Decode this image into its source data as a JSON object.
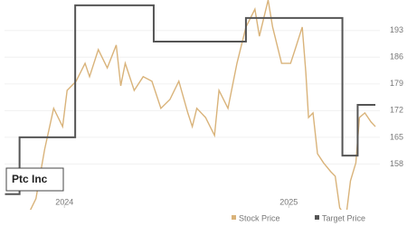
{
  "chart_data": {
    "type": "line",
    "annotation": "Ptc Inc",
    "xlim": [
      2023.733,
      2025.406
    ],
    "xticks": [
      2024,
      2025
    ],
    "ylim": [
      144,
      201
    ],
    "yticks": [
      158,
      165,
      172,
      179,
      186,
      193
    ],
    "grid": true,
    "series": [
      {
        "name": "Stock Price",
        "color": "#d9b37a",
        "step": false,
        "x": [
          2023.833,
          2023.873,
          2023.912,
          2023.952,
          2023.992,
          2024.012,
          2024.052,
          2024.092,
          2024.112,
          2024.151,
          2024.191,
          2024.231,
          2024.251,
          2024.271,
          2024.311,
          2024.351,
          2024.39,
          2024.43,
          2024.47,
          2024.51,
          2024.55,
          2024.57,
          2024.59,
          2024.629,
          2024.669,
          2024.689,
          2024.729,
          2024.769,
          2024.809,
          2024.849,
          2024.869,
          2024.908,
          2024.928,
          2024.968,
          2025.008,
          2025.028,
          2025.06,
          2025.076,
          2025.088,
          2025.108,
          2025.128,
          2025.155,
          2025.187,
          2025.207,
          2025.227,
          2025.255,
          2025.275,
          2025.299,
          2025.315,
          2025.339,
          2025.367,
          2025.386
        ],
        "values": [
          144.1,
          148.9,
          161.9,
          172.6,
          167.8,
          177.3,
          179.7,
          184.4,
          180.9,
          188.0,
          183.2,
          189.2,
          178.5,
          184.4,
          177.3,
          180.9,
          179.7,
          172.6,
          174.9,
          179.7,
          171.4,
          167.8,
          172.6,
          170.2,
          165.5,
          177.3,
          172.6,
          184.4,
          193.9,
          198.6,
          191.5,
          201.0,
          193.9,
          184.4,
          184.4,
          188.0,
          193.9,
          182.0,
          170.2,
          171.4,
          160.7,
          158.3,
          156.0,
          154.8,
          146.5,
          144.1,
          153.6,
          158.3,
          170.2,
          171.4,
          169.0,
          167.8
        ]
      },
      {
        "name": "Target Price",
        "color": "#555555",
        "step": true,
        "x": [
          2023.735,
          2023.8,
          2024.048,
          2024.398,
          2024.809,
          2025.239,
          2025.307,
          2025.386
        ],
        "values": [
          150.1,
          165.0,
          199.6,
          190.1,
          196.3,
          160.2,
          173.5,
          173.5
        ]
      }
    ]
  }
}
